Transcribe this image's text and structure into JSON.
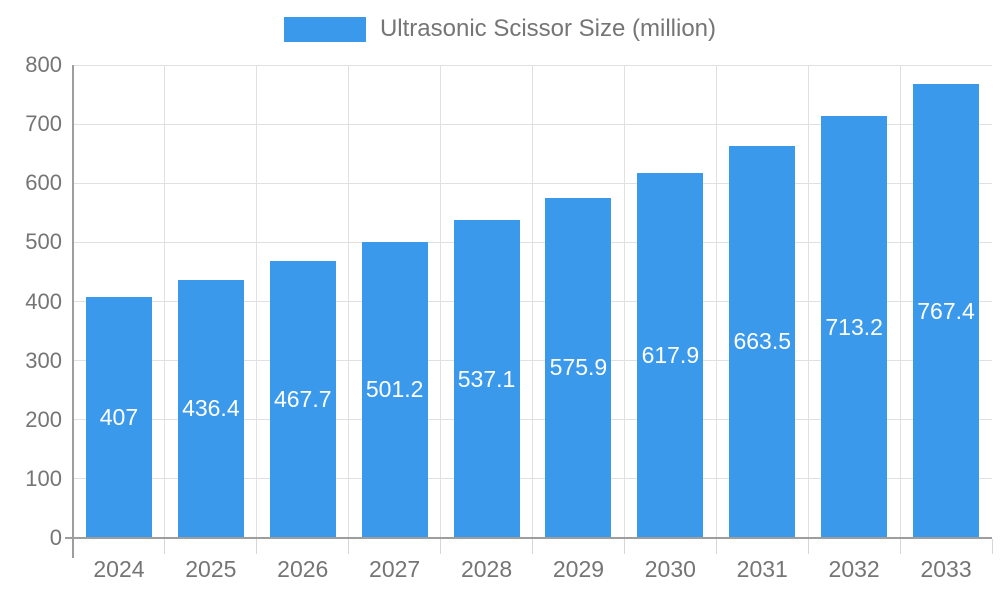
{
  "chart_data": {
    "type": "bar",
    "title": "Ultrasonic Scissor Size (million)",
    "categories": [
      "2024",
      "2025",
      "2026",
      "2027",
      "2028",
      "2029",
      "2030",
      "2031",
      "2032",
      "2033"
    ],
    "series": [
      {
        "name": "Ultrasonic Scissor Size (million)",
        "color": "#3B99EC",
        "values": [
          407,
          436.4,
          467.7,
          501.2,
          537.1,
          575.9,
          617.9,
          663.5,
          713.2,
          767.4
        ]
      }
    ],
    "value_labels": [
      "407",
      "436.4",
      "467.7",
      "501.2",
      "537.1",
      "575.9",
      "617.9",
      "663.5",
      "713.2",
      "767.4"
    ],
    "xlabel": "",
    "ylabel": "",
    "ylim": [
      0,
      800
    ],
    "ytick_step": 100,
    "yticks": [
      "0",
      "100",
      "200",
      "300",
      "400",
      "500",
      "600",
      "700",
      "800"
    ],
    "grid": {
      "horizontal": true,
      "vertical_category_boundaries": true
    },
    "legend_position": "top-center",
    "value_label_position": "inside-center",
    "value_label_color": "#FFFFFF"
  },
  "colors": {
    "bar_fill": "#3B99EC",
    "axis_line": "#9E9E9E",
    "gridline": "#E0E0E0",
    "tick_mark": "#D6D6D6",
    "axis_text": "#757575",
    "value_text": "#FFFFFF",
    "background": "#FFFFFF"
  }
}
